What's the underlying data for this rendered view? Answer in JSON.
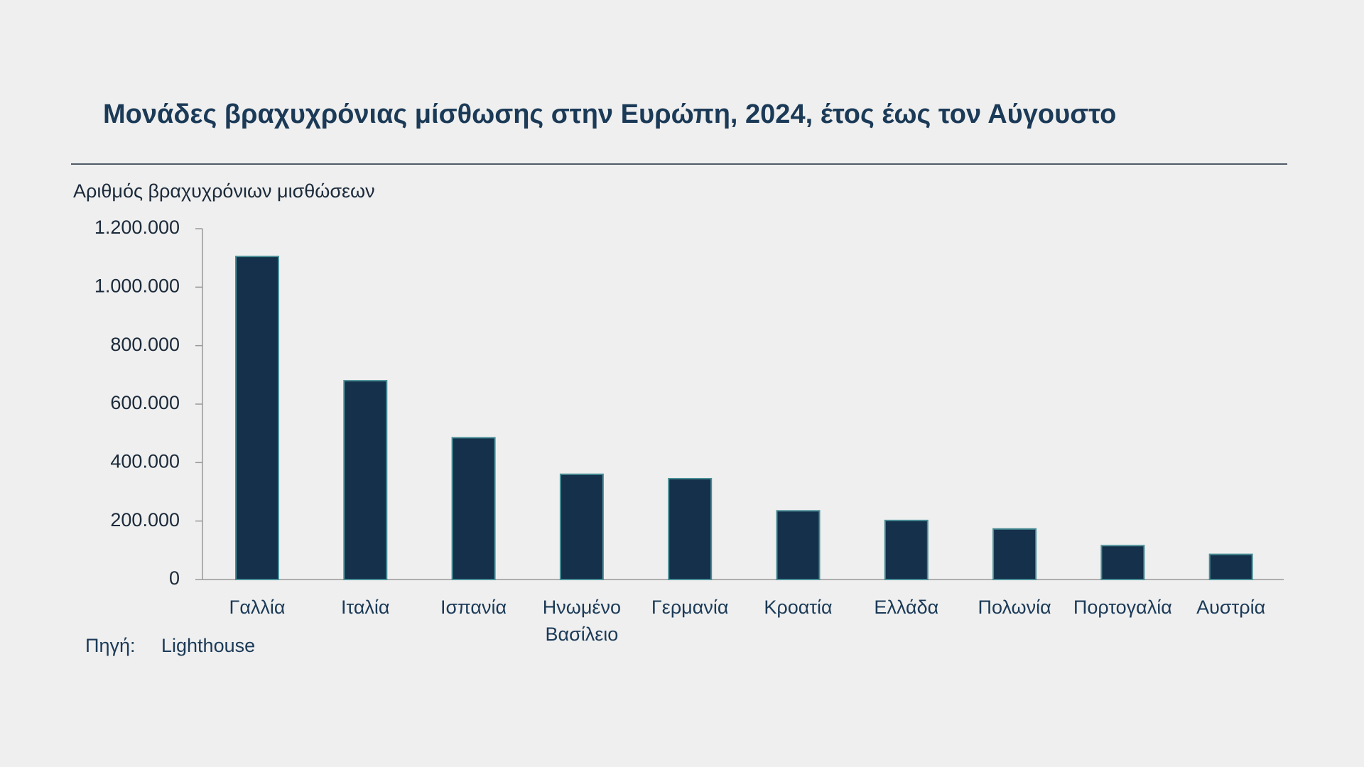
{
  "chart_data": {
    "type": "bar",
    "title": "Μονάδες βραχυχρόνιας μίσθωσης στην Ευρώπη, 2024, έτος έως τον Αύγουστο",
    "y_axis_label": "Αριθμός βραχυχρόνιων μισθώσεων",
    "categories": [
      "Γαλλία",
      "Ιταλία",
      "Ισπανία",
      "Ηνωμένο Βασίλειο",
      "Γερμανία",
      "Κροατία",
      "Ελλάδα",
      "Πολωνία",
      "Πορτογαλία",
      "Αυστρία"
    ],
    "values": [
      1105000,
      680000,
      485000,
      360000,
      345000,
      235000,
      202000,
      173000,
      116000,
      86000
    ],
    "color": "#14304a",
    "ylim": [
      0,
      1200000
    ],
    "yticks": [
      0,
      {
        "value": 200000,
        "label": "200.000"
      },
      {
        "value": 400000,
        "label": "400.000"
      },
      {
        "value": 600000,
        "label": "600.000"
      },
      {
        "value": 800000,
        "label": "800.000"
      },
      {
        "value": 1000000,
        "label": "1.000.000"
      },
      {
        "value": 1200000,
        "label": "1.200.000"
      }
    ],
    "grid": false,
    "source": {
      "label": "Πηγή:",
      "text": "Lighthouse"
    }
  }
}
